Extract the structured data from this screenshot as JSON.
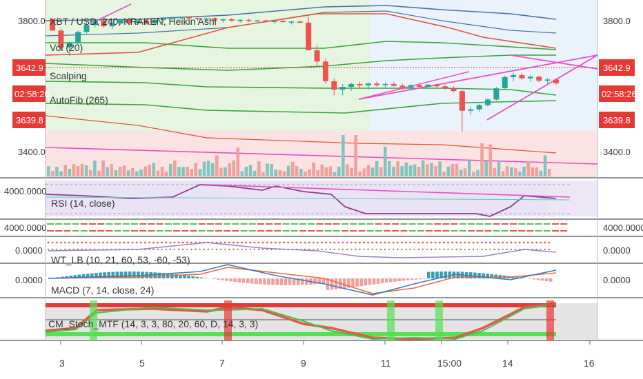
{
  "title": "XBT / USD, 240, KRAKEN, Heikin Ashi",
  "indicators_main": [
    "Vol (20)",
    "Scalping",
    "AutoFib (265)"
  ],
  "price_axis": {
    "labels": [
      "3800.0",
      "3400.0"
    ],
    "last_price": "3642.9",
    "countdown": "02:58:26",
    "low_badge": "3639.8"
  },
  "x_axis": {
    "labels": [
      "3",
      "5",
      "7",
      "9",
      "11",
      "15:00",
      "14",
      "16"
    ]
  },
  "panels": {
    "rsi": {
      "label": "RSI (14, close)",
      "axis": "4000.0000"
    },
    "trend": {
      "axis": "4000.0000"
    },
    "wt": {
      "label": "WT_LB (10, 21, 60, 53, -60, -53)",
      "axis": "0.0000"
    },
    "macd": {
      "label": "MACD (7, 14, close, 24)",
      "axis": "0.0000"
    },
    "stoch": {
      "label": "CM_Stoch_MTF (14, 3, 3, 80, 20, 60, D, 14, 3, 3)"
    }
  },
  "stoch_markers": [
    "S",
    "B",
    "S",
    "B",
    "B",
    "S"
  ],
  "colors": {
    "bull": "#26a69a",
    "bear": "#ef5350",
    "pink": "#e54fc7",
    "green_line": "#3aa33a",
    "red_line": "#e0513a",
    "blue_line": "#4a6fa5",
    "badge_red": "#e53935"
  },
  "chart_data": {
    "type": "candlestick",
    "symbol": "XBT / USD",
    "timeframe": "240",
    "exchange": "KRAKEN",
    "y_ticks": [
      3800.0,
      3400.0
    ],
    "last_price": 3642.9,
    "low_badge": 3639.8,
    "x_ticks": [
      "3",
      "5",
      "7",
      "9",
      "11",
      "15:00",
      "14",
      "16"
    ],
    "ha_candles": [
      {
        "o": 3870,
        "h": 3875,
        "l": 3830,
        "c": 3830
      },
      {
        "o": 3830,
        "h": 3840,
        "l": 3760,
        "c": 3770
      },
      {
        "o": 3770,
        "h": 3790,
        "l": 3740,
        "c": 3785
      },
      {
        "o": 3785,
        "h": 3830,
        "l": 3780,
        "c": 3825
      },
      {
        "o": 3825,
        "h": 3860,
        "l": 3820,
        "c": 3850
      },
      {
        "o": 3850,
        "h": 3870,
        "l": 3840,
        "c": 3865
      },
      {
        "o": 3865,
        "h": 3870,
        "l": 3840,
        "c": 3845
      },
      {
        "o": 3845,
        "h": 3860,
        "l": 3835,
        "c": 3855
      },
      {
        "o": 3855,
        "h": 3870,
        "l": 3850,
        "c": 3868
      },
      {
        "o": 3868,
        "h": 3875,
        "l": 3852,
        "c": 3856
      },
      {
        "o": 3856,
        "h": 3870,
        "l": 3850,
        "c": 3865
      },
      {
        "o": 3865,
        "h": 3875,
        "l": 3850,
        "c": 3855
      },
      {
        "o": 3855,
        "h": 3870,
        "l": 3850,
        "c": 3868
      },
      {
        "o": 3868,
        "h": 3875,
        "l": 3860,
        "c": 3872
      },
      {
        "o": 3872,
        "h": 3880,
        "l": 3865,
        "c": 3876
      },
      {
        "o": 3876,
        "h": 3880,
        "l": 3870,
        "c": 3878
      },
      {
        "o": 3878,
        "h": 3880,
        "l": 3868,
        "c": 3874
      },
      {
        "o": 3874,
        "h": 3878,
        "l": 3865,
        "c": 3870
      },
      {
        "o": 3870,
        "h": 3876,
        "l": 3860,
        "c": 3873
      },
      {
        "o": 3873,
        "h": 3877,
        "l": 3862,
        "c": 3866
      },
      {
        "o": 3866,
        "h": 3872,
        "l": 3858,
        "c": 3870
      },
      {
        "o": 3870,
        "h": 3875,
        "l": 3862,
        "c": 3865
      },
      {
        "o": 3865,
        "h": 3870,
        "l": 3858,
        "c": 3868
      },
      {
        "o": 3868,
        "h": 3872,
        "l": 3860,
        "c": 3864
      },
      {
        "o": 3864,
        "h": 3868,
        "l": 3856,
        "c": 3866
      },
      {
        "o": 3866,
        "h": 3870,
        "l": 3858,
        "c": 3862
      },
      {
        "o": 3862,
        "h": 3866,
        "l": 3854,
        "c": 3864
      },
      {
        "o": 3864,
        "h": 3868,
        "l": 3858,
        "c": 3860
      },
      {
        "o": 3860,
        "h": 3864,
        "l": 3852,
        "c": 3862
      },
      {
        "o": 3862,
        "h": 3866,
        "l": 3856,
        "c": 3858
      },
      {
        "o": 3858,
        "h": 3880,
        "l": 3820,
        "c": 3760
      },
      {
        "o": 3760,
        "h": 3780,
        "l": 3700,
        "c": 3720
      },
      {
        "o": 3720,
        "h": 3730,
        "l": 3640,
        "c": 3650
      },
      {
        "o": 3650,
        "h": 3660,
        "l": 3600,
        "c": 3620
      },
      {
        "o": 3620,
        "h": 3640,
        "l": 3600,
        "c": 3630
      },
      {
        "o": 3630,
        "h": 3645,
        "l": 3615,
        "c": 3640
      },
      {
        "o": 3640,
        "h": 3648,
        "l": 3625,
        "c": 3635
      },
      {
        "o": 3635,
        "h": 3645,
        "l": 3620,
        "c": 3642
      },
      {
        "o": 3642,
        "h": 3650,
        "l": 3630,
        "c": 3636
      },
      {
        "o": 3636,
        "h": 3646,
        "l": 3628,
        "c": 3640
      },
      {
        "o": 3640,
        "h": 3648,
        "l": 3630,
        "c": 3634
      },
      {
        "o": 3634,
        "h": 3642,
        "l": 3620,
        "c": 3628
      },
      {
        "o": 3628,
        "h": 3640,
        "l": 3618,
        "c": 3636
      },
      {
        "o": 3636,
        "h": 3644,
        "l": 3626,
        "c": 3630
      },
      {
        "o": 3630,
        "h": 3640,
        "l": 3622,
        "c": 3638
      },
      {
        "o": 3638,
        "h": 3642,
        "l": 3626,
        "c": 3632
      },
      {
        "o": 3632,
        "h": 3640,
        "l": 3620,
        "c": 3626
      },
      {
        "o": 3626,
        "h": 3632,
        "l": 3610,
        "c": 3615
      },
      {
        "o": 3615,
        "h": 3620,
        "l": 3470,
        "c": 3545
      },
      {
        "o": 3545,
        "h": 3560,
        "l": 3530,
        "c": 3550
      },
      {
        "o": 3550,
        "h": 3570,
        "l": 3540,
        "c": 3565
      },
      {
        "o": 3565,
        "h": 3590,
        "l": 3560,
        "c": 3585
      },
      {
        "o": 3585,
        "h": 3630,
        "l": 3580,
        "c": 3625
      },
      {
        "o": 3625,
        "h": 3670,
        "l": 3620,
        "c": 3665
      },
      {
        "o": 3665,
        "h": 3680,
        "l": 3650,
        "c": 3672
      },
      {
        "o": 3672,
        "h": 3680,
        "l": 3655,
        "c": 3660
      },
      {
        "o": 3660,
        "h": 3672,
        "l": 3648,
        "c": 3666
      },
      {
        "o": 3666,
        "h": 3670,
        "l": 3645,
        "c": 3652
      },
      {
        "o": 3652,
        "h": 3662,
        "l": 3640,
        "c": 3656
      },
      {
        "o": 3656,
        "h": 3660,
        "l": 3636,
        "c": 3643
      }
    ]
  }
}
